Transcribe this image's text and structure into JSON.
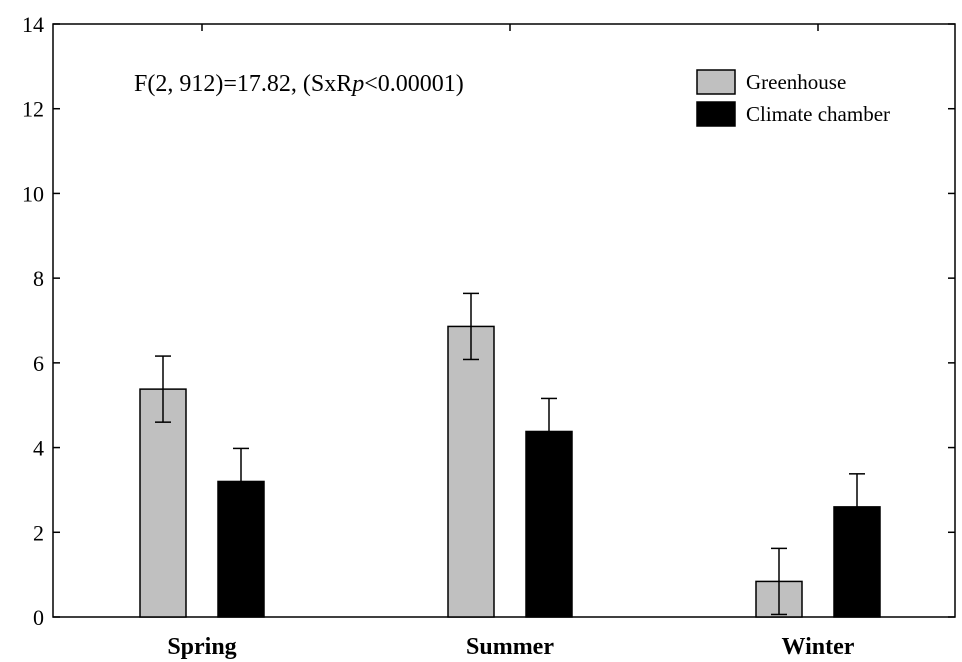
{
  "chart_data": {
    "type": "bar",
    "categories": [
      "Spring",
      "Summer",
      "Winter"
    ],
    "series": [
      {
        "name": "Greenhouse",
        "color": "#c0c0c0",
        "values": [
          5.38,
          6.86,
          0.84
        ],
        "errors": [
          0.78,
          0.78,
          0.78
        ]
      },
      {
        "name": "Climate chamber",
        "color": "#000000",
        "values": [
          3.2,
          4.38,
          2.6
        ],
        "errors": [
          0.78,
          0.78,
          0.78
        ]
      }
    ],
    "ylim": [
      0,
      14
    ],
    "yticks": [
      0,
      2,
      4,
      6,
      8,
      10,
      12,
      14
    ],
    "legend_position": "top-right",
    "grid": false,
    "annotation": {
      "prefix": "F(2, 912)=17.82, (SxR",
      "italic": "p",
      "suffix": "<0.00001)"
    }
  }
}
